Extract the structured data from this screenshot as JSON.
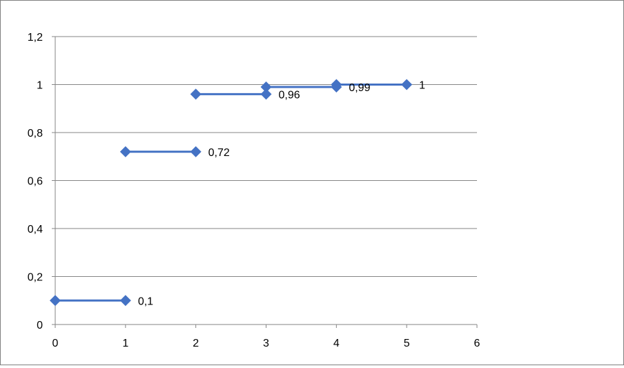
{
  "chart_data": {
    "type": "line",
    "title": "",
    "xlabel": "",
    "ylabel": "",
    "xlim": [
      0,
      6
    ],
    "ylim": [
      0,
      1.2
    ],
    "x_ticks": [
      0,
      1,
      2,
      3,
      4,
      5,
      6
    ],
    "y_ticks": [
      0,
      0.2,
      0.4,
      0.6,
      0.8,
      1,
      1.2
    ],
    "x_tick_labels": [
      "0",
      "1",
      "2",
      "3",
      "4",
      "5",
      "6"
    ],
    "y_tick_labels": [
      "0",
      "0,2",
      "0,4",
      "0,6",
      "0,8",
      "1",
      "1,2"
    ],
    "grid": "horizontal",
    "legend": "none",
    "series_color": "#4472C4",
    "segments": [
      {
        "x": [
          0,
          1
        ],
        "y": 0.1,
        "label": "0,1"
      },
      {
        "x": [
          1,
          2
        ],
        "y": 0.72,
        "label": "0,72"
      },
      {
        "x": [
          2,
          3
        ],
        "y": 0.96,
        "label": "0,96"
      },
      {
        "x": [
          3,
          4
        ],
        "y": 0.99,
        "label": "0,99"
      },
      {
        "x": [
          4,
          5
        ],
        "y": 1,
        "label": "1"
      }
    ]
  }
}
